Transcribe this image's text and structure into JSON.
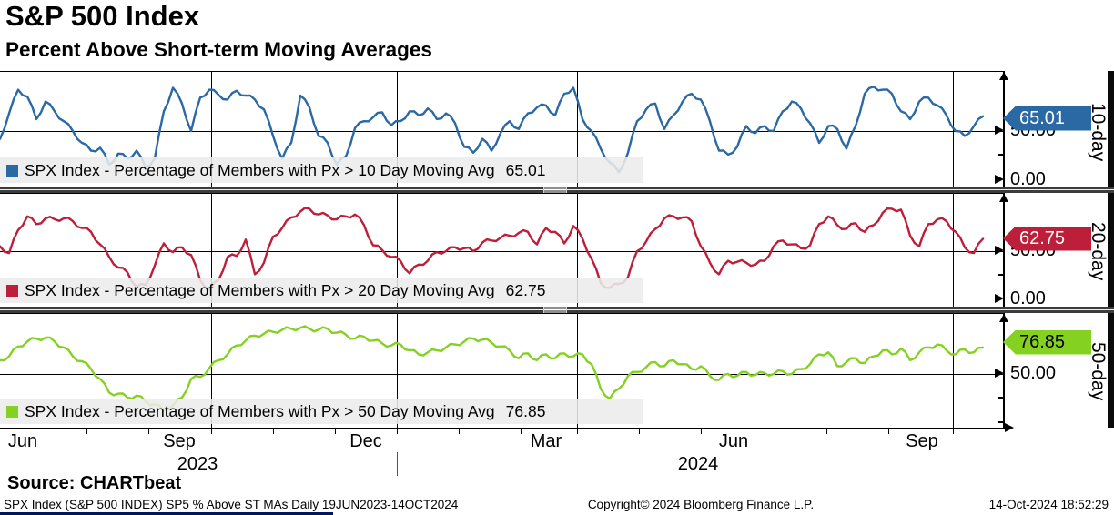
{
  "header": {
    "title": "S&P 500 Index",
    "subtitle": "Percent Above Short-term Moving Averages"
  },
  "chart_data": [
    {
      "type": "line",
      "name": "10-day",
      "axis_title": "10-day",
      "color": "#2b69a5",
      "tag_text_color": "#ffffff",
      "legend_label": "SPX Index - Percentage of Members with Px > 10 Day Moving Avg",
      "value_label": "65.01",
      "ylim": [
        0,
        100
      ],
      "y_ticks": [
        {
          "label": "50.00",
          "value": 50
        },
        {
          "label": "0.00",
          "value": 0
        }
      ],
      "y_minor": [
        25
      ],
      "x_start": 0,
      "x_step": 10,
      "values": [
        42,
        68,
        92,
        85,
        62,
        80,
        70,
        60,
        50,
        38,
        30,
        33,
        16,
        27,
        22,
        30,
        13,
        22,
        70,
        94,
        78,
        50,
        84,
        92,
        87,
        82,
        91,
        86,
        82,
        72,
        45,
        22,
        38,
        86,
        74,
        45,
        38,
        16,
        24,
        53,
        60,
        64,
        69,
        56,
        60,
        70,
        66,
        73,
        62,
        68,
        58,
        34,
        28,
        42,
        30,
        48,
        60,
        52,
        68,
        74,
        76,
        66,
        88,
        94,
        62,
        50,
        32,
        18,
        8,
        28,
        60,
        72,
        78,
        52,
        66,
        80,
        88,
        82,
        60,
        30,
        26,
        34,
        55,
        48,
        55,
        50,
        70,
        80,
        73,
        58,
        38,
        55,
        52,
        32,
        55,
        88,
        95,
        92,
        88,
        70,
        62,
        80,
        84,
        76,
        66,
        50,
        45,
        55,
        65.01
      ]
    },
    {
      "type": "line",
      "name": "20-day",
      "axis_title": "20-day",
      "color": "#bd1f3a",
      "tag_text_color": "#ffffff",
      "legend_label": "SPX Index - Percentage of Members with Px > 20 Day Moving Avg",
      "value_label": "62.75",
      "ylim": [
        0,
        100
      ],
      "y_ticks": [
        {
          "label": "50.00",
          "value": 50
        },
        {
          "label": "0.00",
          "value": 0
        }
      ],
      "y_minor": [
        25
      ],
      "x_start": 0,
      "x_step": 10,
      "values": [
        55,
        48,
        72,
        86,
        78,
        84,
        83,
        84,
        81,
        74,
        70,
        57,
        44,
        33,
        28,
        13,
        15,
        35,
        58,
        49,
        54,
        46,
        20,
        10,
        20,
        44,
        45,
        62,
        26,
        38,
        65,
        74,
        85,
        91,
        94,
        88,
        87,
        83,
        86,
        88,
        77,
        56,
        51,
        44,
        40,
        27,
        36,
        40,
        49,
        50,
        54,
        53,
        50,
        59,
        61,
        64,
        66,
        69,
        70,
        57,
        74,
        70,
        58,
        76,
        63,
        42,
        17,
        12,
        16,
        23,
        50,
        60,
        73,
        84,
        86,
        85,
        81,
        55,
        38,
        26,
        40,
        39,
        38,
        36,
        40,
        55,
        61,
        57,
        53,
        56,
        78,
        86,
        77,
        73,
        79,
        70,
        77,
        90,
        94,
        93,
        66,
        55,
        78,
        83,
        81,
        70,
        54,
        48,
        62.75
      ]
    },
    {
      "type": "line",
      "name": "50-day",
      "axis_title": "50-day",
      "color": "#84d121",
      "tag_text_color": "#000000",
      "legend_label": "SPX Index - Percentage of Members with Px > 50 Day Moving Avg",
      "value_label": "76.85",
      "ylim": [
        0,
        100
      ],
      "y_ticks": [
        {
          "label": "50.00",
          "value": 50
        }
      ],
      "y_minor": [
        25,
        0
      ],
      "x_start": 0,
      "x_step": 10,
      "values": [
        64,
        68,
        78,
        83,
        86,
        87,
        83,
        77,
        68,
        63,
        55,
        45,
        31,
        30,
        26,
        28,
        22,
        19,
        13,
        18,
        26,
        45,
        47,
        56,
        64,
        70,
        79,
        84,
        89,
        91,
        93,
        95,
        96,
        97,
        96,
        95,
        96,
        92,
        90,
        86,
        88,
        84,
        81,
        79,
        80,
        74,
        70,
        72,
        74,
        77,
        80,
        83,
        86,
        85,
        82,
        78,
        74,
        66,
        71,
        64,
        70,
        66,
        71,
        68,
        70,
        60,
        35,
        25,
        35,
        48,
        52,
        57,
        62,
        58,
        64,
        60,
        55,
        58,
        48,
        44,
        50,
        48,
        52,
        49,
        51,
        50,
        53,
        50,
        55,
        60,
        70,
        72,
        58,
        62,
        66,
        61,
        68,
        74,
        70,
        76,
        64,
        72,
        77,
        80,
        74,
        70,
        75,
        72,
        76.85
      ]
    }
  ],
  "x_axis": {
    "month_labels": [
      {
        "label": "Jun",
        "x": 25
      },
      {
        "label": "Sep",
        "x": 197
      },
      {
        "label": "Dec",
        "x": 402
      },
      {
        "label": "Mar",
        "x": 600
      },
      {
        "label": "Jun",
        "x": 806
      },
      {
        "label": "Sep",
        "x": 1013
      }
    ],
    "year_labels": [
      {
        "label": "2023",
        "x": 217
      },
      {
        "label": "2024",
        "x": 767
      }
    ],
    "year_divider_x": 436,
    "gridlines_x": [
      27,
      232,
      436,
      634,
      840,
      1047
    ],
    "ticks_x": [
      27,
      95,
      163,
      232,
      300,
      368,
      436,
      504,
      572,
      634,
      702,
      770,
      840,
      908,
      976,
      1047
    ]
  },
  "footer": {
    "source": "Source: CHARTbeat",
    "description": "SPX Index (S&P 500 INDEX) SP5 % Above ST MAs  Daily 19JUN2023-14OCT2024",
    "copyright": "Copyright© 2024 Bloomberg Finance L.P.",
    "timestamp": "14-Oct-2024 18:52:29"
  }
}
